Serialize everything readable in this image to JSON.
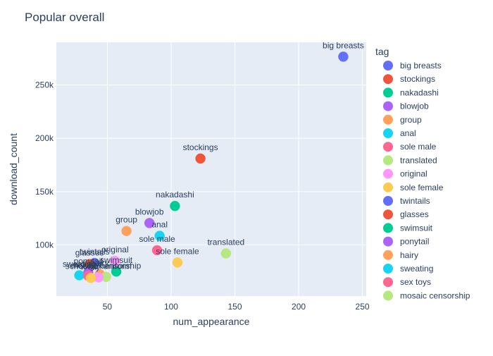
{
  "chart_data": {
    "type": "scatter",
    "title": "Popular overall",
    "xlabel": "num_appearance",
    "ylabel": "download_count",
    "xlim": [
      10,
      253
    ],
    "ylim": [
      52000,
      290000
    ],
    "x_ticks": [
      50,
      100,
      150,
      200,
      250
    ],
    "y_ticks": [
      100000,
      150000,
      200000,
      250000
    ],
    "y_tick_labels": [
      "100k",
      "150k",
      "200k",
      "250k"
    ],
    "grid": true,
    "legend_title": "tag",
    "legend_position": "right",
    "points": [
      {
        "tag": "big breasts",
        "x": 235,
        "y": 276500,
        "color": "#636efa"
      },
      {
        "tag": "stockings",
        "x": 123,
        "y": 181000,
        "color": "#EF553B"
      },
      {
        "tag": "nakadashi",
        "x": 103,
        "y": 136500,
        "color": "#00cc96"
      },
      {
        "tag": "blowjob",
        "x": 83,
        "y": 120500,
        "color": "#ab63fa"
      },
      {
        "tag": "group",
        "x": 65,
        "y": 113000,
        "color": "#FFA15A"
      },
      {
        "tag": "anal",
        "x": 91,
        "y": 108500,
        "color": "#19d3f3"
      },
      {
        "tag": "sole male",
        "x": 89,
        "y": 95000,
        "color": "#FF6692"
      },
      {
        "tag": "translated",
        "x": 143,
        "y": 92000,
        "color": "#B6E880"
      },
      {
        "tag": "original",
        "x": 56,
        "y": 85000,
        "color": "#FF97FF"
      },
      {
        "tag": "sole female",
        "x": 105,
        "y": 83500,
        "color": "#FECB52"
      },
      {
        "tag": "twintails",
        "x": 40,
        "y": 83000,
        "color": "#636efa"
      },
      {
        "tag": "glasses",
        "x": 36,
        "y": 82000,
        "color": "#EF553B"
      },
      {
        "tag": "swimsuit",
        "x": 57,
        "y": 75000,
        "color": "#00cc96"
      },
      {
        "tag": "ponytail",
        "x": 35,
        "y": 74000,
        "color": "#ab63fa"
      },
      {
        "tag": "hairy",
        "x": 44,
        "y": 72500,
        "color": "#FFA15A"
      },
      {
        "tag": "sweating",
        "x": 28,
        "y": 71500,
        "color": "#19d3f3"
      },
      {
        "tag": "sex toys",
        "x": 35,
        "y": 71000,
        "color": "#FF6692"
      },
      {
        "tag": "mosaic censorship",
        "x": 49,
        "y": 70000,
        "color": "#B6E880"
      },
      {
        "tag": "schoolgirl uniform",
        "x": 43,
        "y": 69500,
        "color": "#FF97FF"
      },
      {
        "tag": "x-ray",
        "x": 37,
        "y": 69000,
        "color": "#FECB52"
      }
    ],
    "legend_entries": [
      "big breasts",
      "stockings",
      "nakadashi",
      "blowjob",
      "group",
      "anal",
      "sole male",
      "translated",
      "original",
      "sole female",
      "twintails",
      "glasses",
      "swimsuit",
      "ponytail",
      "hairy",
      "sweating",
      "sex toys",
      "mosaic censorship"
    ]
  }
}
